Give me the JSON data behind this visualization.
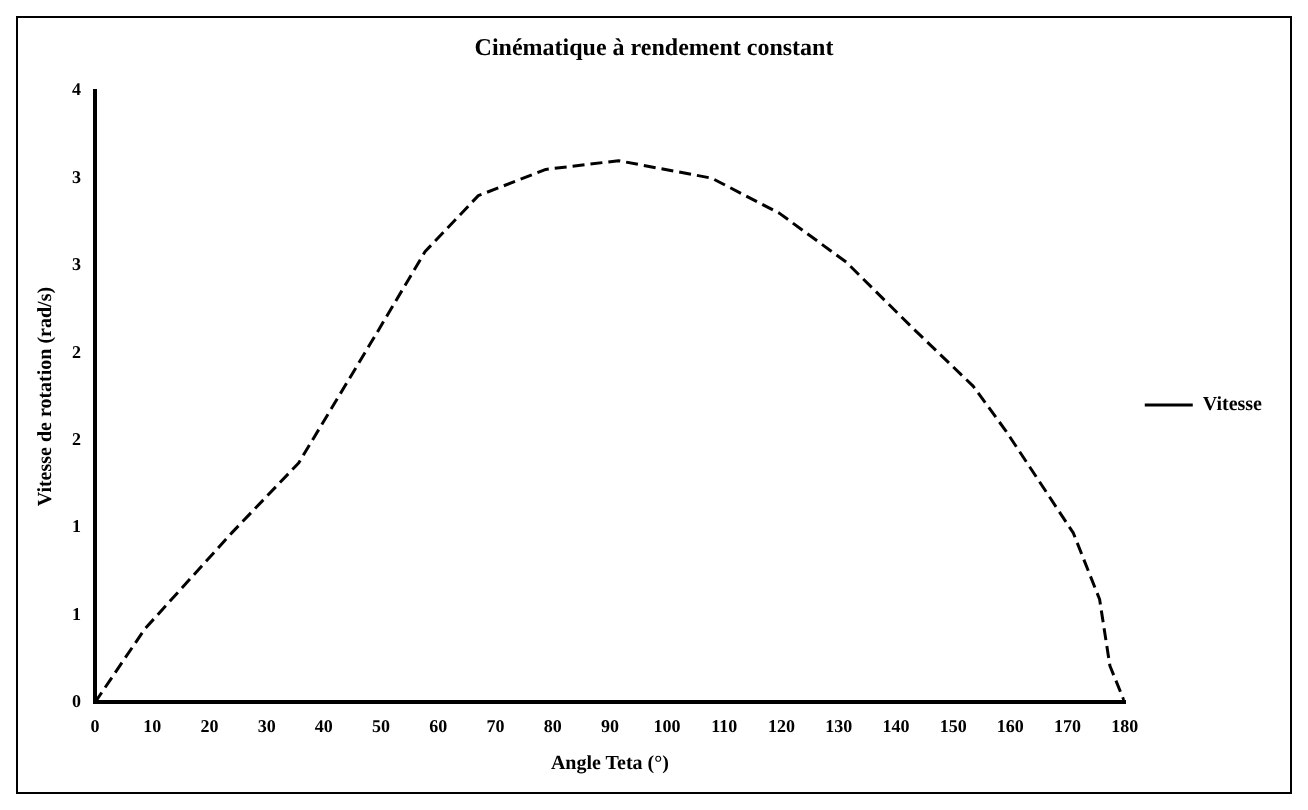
{
  "chart_data": {
    "type": "line",
    "title": "Cinématique à rendement constant",
    "xlabel": "Angle Teta (°)",
    "ylabel": "Vitesse de rotation (rad/s)",
    "series": [
      {
        "name": "Vitesse",
        "color": "#000000",
        "x": [
          0,
          8.7,
          23.9,
          35.6,
          49,
          57.7,
          67,
          78.8,
          91.5,
          107.8,
          119.6,
          131.3,
          143,
          153.5,
          159.3,
          171,
          175.6,
          177.4,
          180
        ],
        "values": [
          0,
          0.42,
          0.97,
          1.37,
          2.1,
          2.58,
          2.9,
          3.05,
          3.1,
          3.0,
          2.8,
          2.52,
          2.14,
          1.81,
          1.55,
          0.97,
          0.59,
          0.21,
          0
        ]
      }
    ],
    "xlim": [
      0,
      180
    ],
    "xticks": [
      0,
      10,
      20,
      30,
      40,
      50,
      60,
      70,
      80,
      90,
      100,
      110,
      120,
      130,
      140,
      150,
      160,
      170,
      180
    ],
    "ylim": [
      0,
      3.5
    ],
    "yticks": [
      0,
      {
        "value": 0.5,
        "label": "1"
      },
      1,
      {
        "value": 1.5,
        "label": "2"
      },
      2,
      {
        "value": 2.5,
        "label": "3"
      },
      3,
      {
        "value": 3.5,
        "label": "4"
      }
    ],
    "grid": false,
    "legend": "right",
    "marker": "none",
    "line_style": "dashed"
  }
}
